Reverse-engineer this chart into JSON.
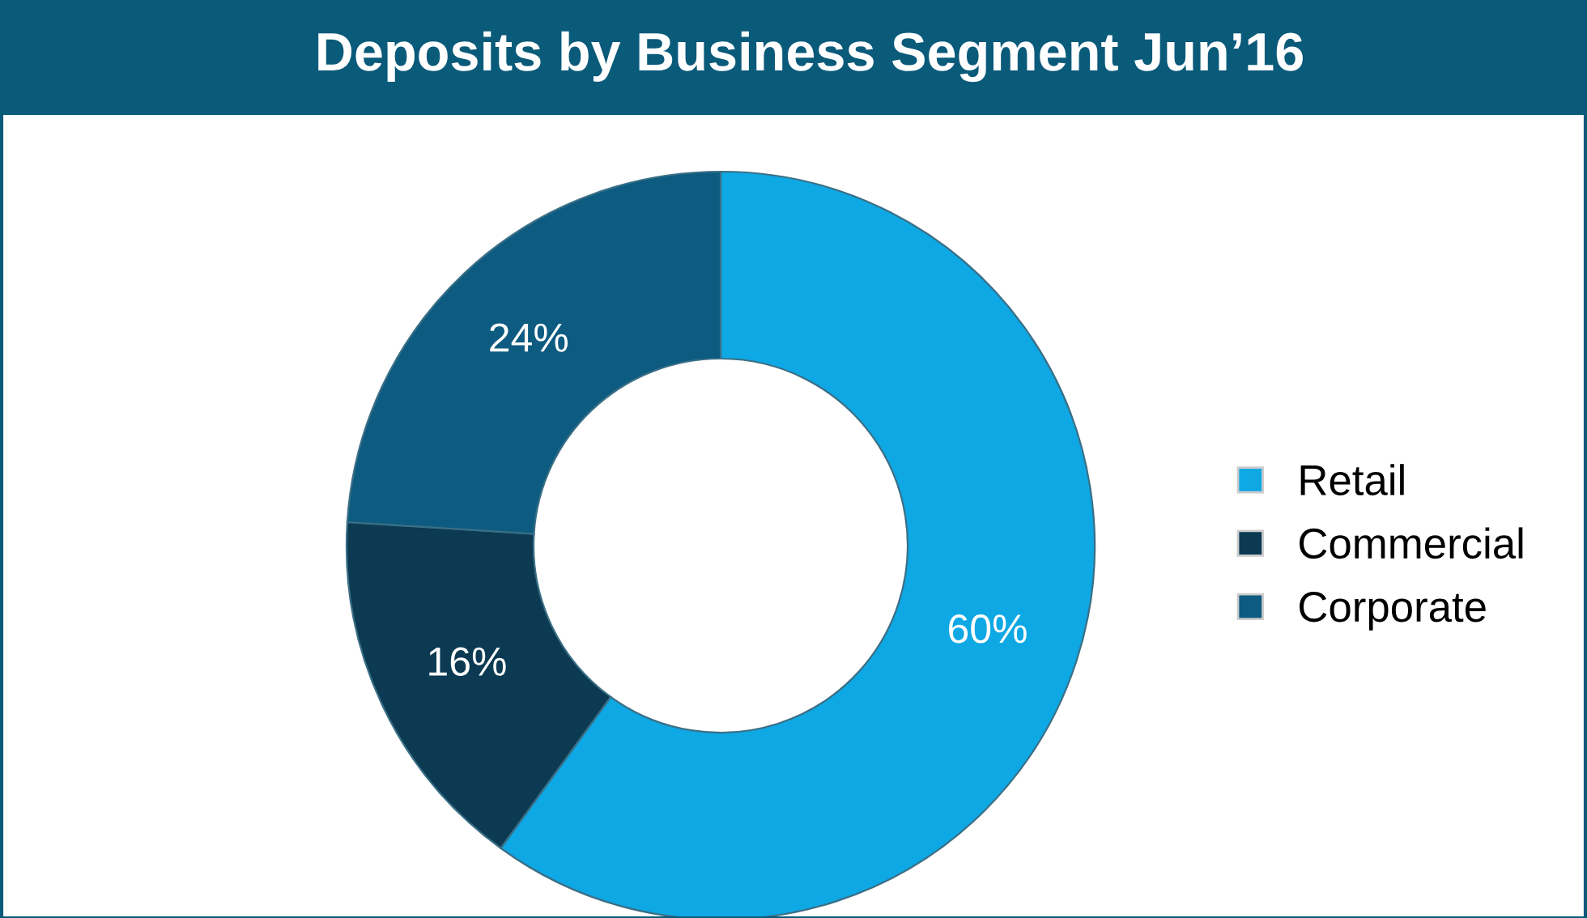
{
  "chart_data": {
    "type": "donut",
    "title": "Deposits by Business Segment Jun’16",
    "categories": [
      "Retail",
      "Commercial",
      "Corporate"
    ],
    "values": [
      60,
      16,
      24
    ],
    "colors": [
      "#0ea8e4",
      "#0b3a52",
      "#0d5b80"
    ],
    "value_labels": [
      "60%",
      "16%",
      "24%"
    ],
    "legend": "right"
  }
}
